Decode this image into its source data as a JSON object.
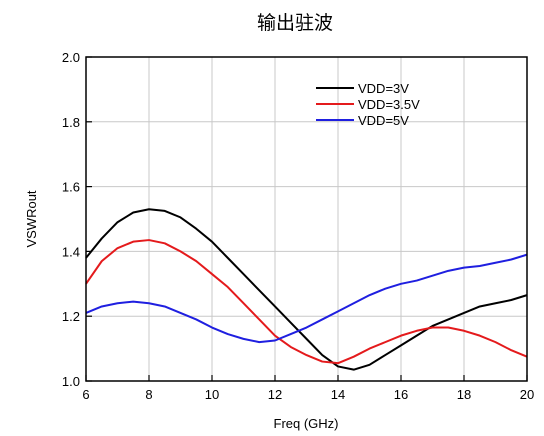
{
  "chart_data": {
    "type": "line",
    "title": "输出驻波",
    "xlabel": "Freq (GHz)",
    "ylabel": "VSWRout",
    "xlim": [
      6,
      20
    ],
    "ylim": [
      1.0,
      2.0
    ],
    "xticks": [
      6,
      8,
      10,
      12,
      14,
      16,
      18,
      20
    ],
    "yticks": [
      1.0,
      1.2,
      1.4,
      1.6,
      1.8,
      2.0
    ],
    "xtick_labels": [
      "6",
      "8",
      "10",
      "12",
      "14",
      "16",
      "18",
      "20"
    ],
    "ytick_labels": [
      "1.0",
      "1.2",
      "1.4",
      "1.6",
      "1.8",
      "2.0"
    ],
    "grid": true,
    "legend_position": "top-right",
    "series": [
      {
        "name": "VDD=3V",
        "color": "#000000",
        "x": [
          6,
          6.5,
          7,
          7.5,
          8,
          8.5,
          9,
          9.5,
          10,
          10.5,
          11,
          11.5,
          12,
          12.5,
          13,
          13.5,
          14,
          14.5,
          15,
          15.5,
          16,
          16.5,
          17,
          17.5,
          18,
          18.5,
          19,
          19.5,
          20
        ],
        "y": [
          1.38,
          1.44,
          1.49,
          1.52,
          1.53,
          1.525,
          1.505,
          1.47,
          1.43,
          1.38,
          1.33,
          1.28,
          1.23,
          1.18,
          1.13,
          1.08,
          1.045,
          1.035,
          1.05,
          1.08,
          1.11,
          1.14,
          1.17,
          1.19,
          1.21,
          1.23,
          1.24,
          1.25,
          1.265
        ]
      },
      {
        "name": "VDD=3.5V",
        "color": "#e41a1c",
        "x": [
          6,
          6.5,
          7,
          7.5,
          8,
          8.5,
          9,
          9.5,
          10,
          10.5,
          11,
          11.5,
          12,
          12.5,
          13,
          13.5,
          14,
          14.5,
          15,
          15.5,
          16,
          16.5,
          17,
          17.5,
          18,
          18.5,
          19,
          19.5,
          20
        ],
        "y": [
          1.3,
          1.37,
          1.41,
          1.43,
          1.435,
          1.425,
          1.4,
          1.37,
          1.33,
          1.29,
          1.24,
          1.19,
          1.14,
          1.105,
          1.08,
          1.06,
          1.055,
          1.075,
          1.1,
          1.12,
          1.14,
          1.155,
          1.165,
          1.165,
          1.155,
          1.14,
          1.12,
          1.095,
          1.075
        ]
      },
      {
        "name": "VDD=5V",
        "color": "#1f1fe0",
        "x": [
          6,
          6.5,
          7,
          7.5,
          8,
          8.5,
          9,
          9.5,
          10,
          10.5,
          11,
          11.5,
          12,
          12.5,
          13,
          13.5,
          14,
          14.5,
          15,
          15.5,
          16,
          16.5,
          17,
          17.5,
          18,
          18.5,
          19,
          19.5,
          20
        ],
        "y": [
          1.21,
          1.23,
          1.24,
          1.245,
          1.24,
          1.23,
          1.21,
          1.19,
          1.165,
          1.145,
          1.13,
          1.12,
          1.125,
          1.145,
          1.165,
          1.19,
          1.215,
          1.24,
          1.265,
          1.285,
          1.3,
          1.31,
          1.325,
          1.34,
          1.35,
          1.355,
          1.365,
          1.375,
          1.39
        ]
      }
    ]
  }
}
